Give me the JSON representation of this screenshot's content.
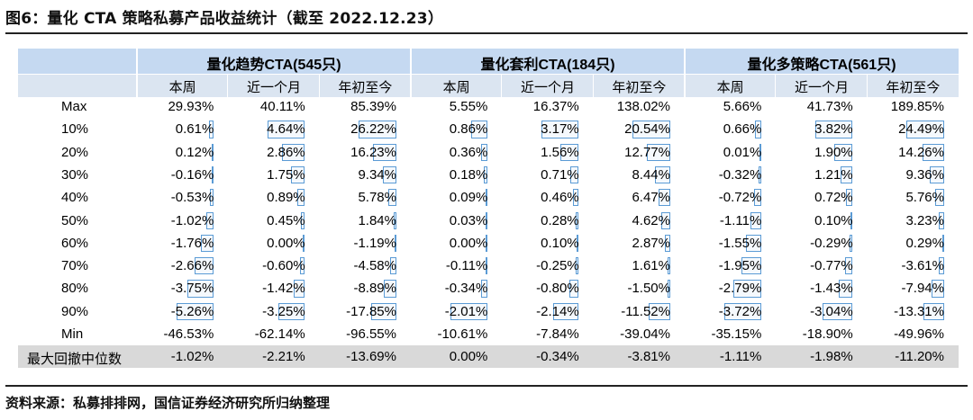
{
  "figure": {
    "title": "图6：量化 CTA 策略私募产品收益统计（截至 2022.12.23）",
    "source": "资料来源：私募排排网，国信证券经济研究所归纳整理"
  },
  "table": {
    "groups": [
      "量化趋势CTA(545只)",
      "量化套利CTA(184只)",
      "量化多策略CTA(561只)"
    ],
    "subheaders": [
      "本周",
      "近一个月",
      "年初至今"
    ],
    "rows": [
      {
        "label": "Max",
        "values": [
          "29.93%",
          "40.11%",
          "85.39%",
          "5.55%",
          "16.37%",
          "138.02%",
          "5.66%",
          "41.73%",
          "189.85%"
        ]
      },
      {
        "label": "10%",
        "values": [
          "0.61%",
          "4.64%",
          "26.22%",
          "0.86%",
          "3.17%",
          "20.54%",
          "0.66%",
          "3.82%",
          "24.49%"
        ]
      },
      {
        "label": "20%",
        "values": [
          "0.12%",
          "2.86%",
          "16.23%",
          "0.36%",
          "1.56%",
          "12.77%",
          "0.01%",
          "1.90%",
          "14.26%"
        ]
      },
      {
        "label": "30%",
        "values": [
          "-0.16%",
          "1.75%",
          "9.34%",
          "0.18%",
          "0.71%",
          "8.44%",
          "-0.32%",
          "1.21%",
          "9.36%"
        ]
      },
      {
        "label": "40%",
        "values": [
          "-0.53%",
          "0.89%",
          "5.78%",
          "0.09%",
          "0.46%",
          "6.47%",
          "-0.72%",
          "0.72%",
          "5.76%"
        ]
      },
      {
        "label": "50%",
        "values": [
          "-1.02%",
          "0.45%",
          "1.84%",
          "0.03%",
          "0.28%",
          "4.62%",
          "-1.11%",
          "0.10%",
          "3.23%"
        ]
      },
      {
        "label": "60%",
        "values": [
          "-1.76%",
          "0.00%",
          "-1.19%",
          "0.00%",
          "0.10%",
          "2.87%",
          "-1.55%",
          "-0.29%",
          "0.29%"
        ]
      },
      {
        "label": "70%",
        "values": [
          "-2.66%",
          "-0.60%",
          "-4.58%",
          "-0.11%",
          "-0.25%",
          "1.61%",
          "-1.95%",
          "-0.77%",
          "-3.61%"
        ]
      },
      {
        "label": "80%",
        "values": [
          "-3.75%",
          "-1.42%",
          "-8.89%",
          "-0.34%",
          "-0.80%",
          "-1.50%",
          "-2.79%",
          "-1.43%",
          "-7.94%"
        ]
      },
      {
        "label": "90%",
        "values": [
          "-5.26%",
          "-3.25%",
          "-17.85%",
          "-2.01%",
          "-2.14%",
          "-11.52%",
          "-3.72%",
          "-3.04%",
          "-13.31%"
        ]
      },
      {
        "label": "Min",
        "values": [
          "-46.53%",
          "-62.14%",
          "-96.55%",
          "-10.61%",
          "-7.84%",
          "-39.04%",
          "-35.15%",
          "-18.90%",
          "-49.96%"
        ]
      }
    ],
    "footer": {
      "label": "最大回撤中位数",
      "values": [
        "-1.02%",
        "-2.21%",
        "-13.69%",
        "0.00%",
        "-0.34%",
        "-3.81%",
        "-1.11%",
        "-1.98%",
        "-11.20%"
      ]
    },
    "bar_color": "#5b9bd5",
    "header_color": "#c5d9f1",
    "subheader_color": "#dbe5f1",
    "footer_color": "#d9d9d9"
  }
}
